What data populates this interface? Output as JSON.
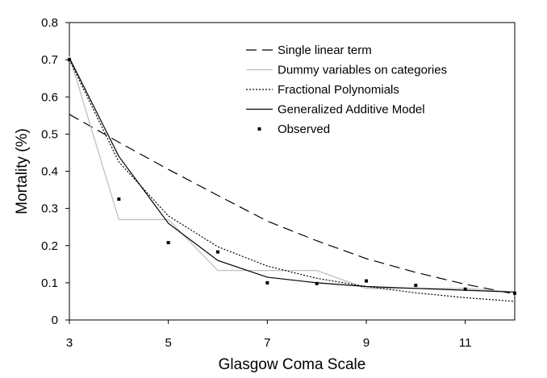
{
  "chart_data": {
    "type": "line",
    "xlabel": "Glasgow Coma Scale",
    "ylabel": "Mortality (%)",
    "xlim": [
      3,
      12
    ],
    "ylim": [
      0,
      0.8
    ],
    "x_ticks": [
      3,
      5,
      7,
      9,
      11
    ],
    "x_tick_labels": [
      "3",
      "5",
      "7",
      "9",
      "11"
    ],
    "y_ticks": [
      0,
      0.1,
      0.2,
      0.3,
      0.4,
      0.5,
      0.6,
      0.7,
      0.8
    ],
    "y_tick_labels": [
      "0",
      "0.1",
      "0.2",
      "0.3",
      "0.4",
      "0.5",
      "0.6",
      "0.7",
      "0.8"
    ],
    "grid": false,
    "legend_position": "top-right",
    "series": [
      {
        "name": "Single linear term",
        "style": "dashed",
        "color": "#000000",
        "x": [
          3,
          4,
          5,
          6,
          7,
          8,
          9,
          10,
          11,
          12
        ],
        "values": [
          0.553,
          0.478,
          0.405,
          0.335,
          0.266,
          0.213,
          0.165,
          0.128,
          0.096,
          0.07
        ]
      },
      {
        "name": "Dummy variables on categories",
        "style": "solid",
        "color": "#c0c0c0",
        "x": [
          3,
          4,
          5,
          6,
          7,
          8,
          9,
          10,
          11,
          12
        ],
        "values": [
          0.71,
          0.27,
          0.27,
          0.133,
          0.133,
          0.133,
          0.085,
          0.085,
          0.085,
          0.075
        ]
      },
      {
        "name": "Fractional Polynomials",
        "style": "dotted",
        "color": "#000000",
        "x": [
          3,
          4,
          5,
          6,
          7,
          8,
          9,
          10,
          11,
          12
        ],
        "values": [
          0.7,
          0.425,
          0.28,
          0.197,
          0.145,
          0.112,
          0.09,
          0.073,
          0.06,
          0.05
        ]
      },
      {
        "name": "Generalized Additive Model",
        "style": "solid",
        "color": "#000000",
        "x": [
          3,
          4,
          5,
          6,
          7,
          8,
          9,
          10,
          11,
          12
        ],
        "values": [
          0.705,
          0.44,
          0.26,
          0.16,
          0.115,
          0.1,
          0.09,
          0.085,
          0.08,
          0.075
        ]
      },
      {
        "name": "Observed",
        "style": "points",
        "color": "#000000",
        "x": [
          3,
          4,
          5,
          6,
          7,
          8,
          9,
          10,
          11,
          12
        ],
        "values": [
          0.7,
          0.325,
          0.208,
          0.183,
          0.1,
          0.098,
          0.105,
          0.093,
          0.083,
          0.072
        ]
      }
    ]
  }
}
